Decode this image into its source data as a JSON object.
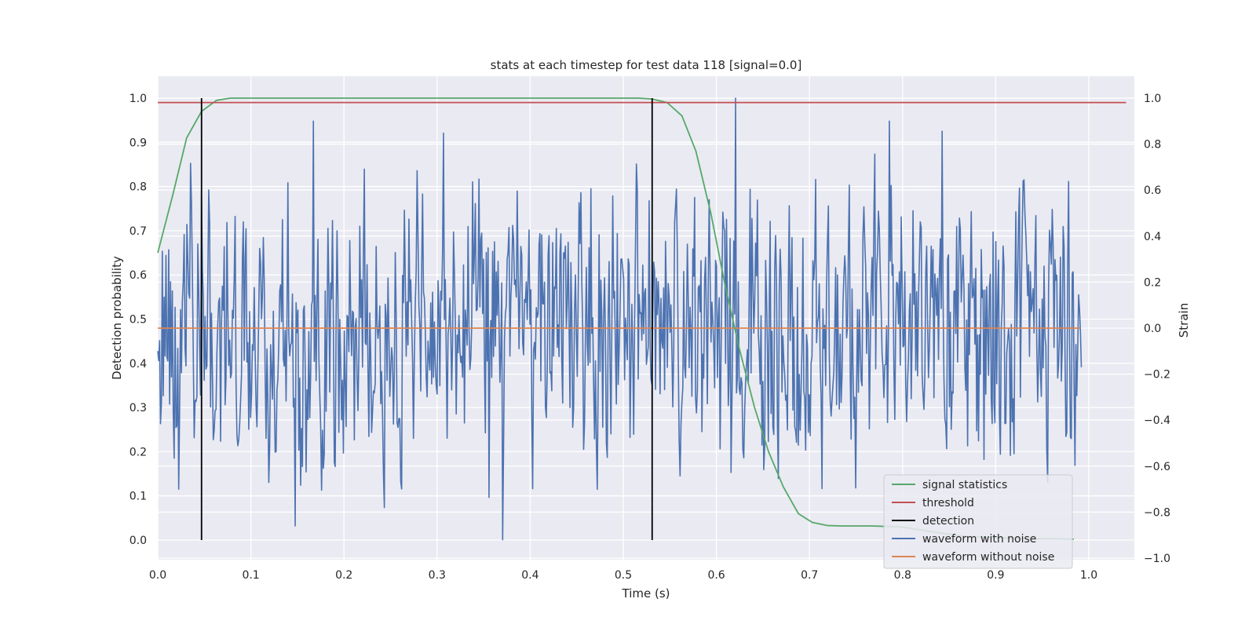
{
  "chart_data": {
    "type": "line",
    "title": "stats at each timestep for test data 118 [signal=0.0]",
    "xlabel": "Time (s)",
    "ylabel_left": "Detection probability",
    "ylabel_right": "Strain",
    "xlim": [
      0.0,
      1.05
    ],
    "ylim_left": [
      -0.05,
      1.05
    ],
    "ylim_right": [
      -1.0,
      1.1
    ],
    "xticks": [
      "0.0",
      "0.1",
      "0.2",
      "0.3",
      "0.4",
      "0.5",
      "0.6",
      "0.7",
      "0.8",
      "0.9",
      "1.0"
    ],
    "yticks_left": [
      "0.0",
      "0.1",
      "0.2",
      "0.3",
      "0.4",
      "0.5",
      "0.6",
      "0.7",
      "0.8",
      "0.9",
      "1.0"
    ],
    "yticks_right": [
      "−1.0",
      "−0.8",
      "−0.6",
      "−0.4",
      "−0.2",
      "0.0",
      "0.2",
      "0.4",
      "0.6",
      "0.8",
      "1.0"
    ],
    "grid": true,
    "legend_position": "lower-right",
    "series": [
      {
        "name": "signal statistics",
        "axis": "left",
        "color": "#55a868",
        "x": [
          0.0,
          0.016,
          0.031,
          0.047,
          0.063,
          0.078,
          0.094,
          0.2,
          0.3,
          0.4,
          0.5,
          0.516,
          0.531,
          0.547,
          0.563,
          0.578,
          0.594,
          0.609,
          0.625,
          0.641,
          0.656,
          0.672,
          0.688,
          0.703,
          0.719,
          0.734,
          0.75,
          0.766,
          0.781,
          0.797,
          0.813,
          0.828,
          0.844,
          0.859,
          0.875,
          0.891,
          0.906,
          0.922,
          0.938,
          0.953,
          0.969,
          0.984
        ],
        "y": [
          0.65,
          0.78,
          0.91,
          0.97,
          0.995,
          1.0,
          1.0,
          1.0,
          1.0,
          1.0,
          1.0,
          1.0,
          0.998,
          0.99,
          0.96,
          0.88,
          0.74,
          0.58,
          0.43,
          0.3,
          0.2,
          0.12,
          0.06,
          0.04,
          0.033,
          0.032,
          0.032,
          0.032,
          0.031,
          0.03,
          0.025,
          0.02,
          0.015,
          0.01,
          0.008,
          0.006,
          0.005,
          0.004,
          0.003,
          0.003,
          0.003,
          0.002
        ]
      },
      {
        "name": "threshold",
        "axis": "left",
        "color": "#c44e52",
        "x": [
          0.0,
          1.04
        ],
        "y": [
          0.99,
          0.99
        ]
      },
      {
        "name": "detection",
        "axis": "left",
        "color": "#000000",
        "x": [
          0.047,
          0.531
        ],
        "y": [
          0.0,
          1.0
        ]
      },
      {
        "name": "waveform with noise",
        "axis": "right",
        "color": "#4c72b0",
        "x_range": [
          0.0,
          0.992
        ],
        "n_points": 1016,
        "y_range": [
          -0.91,
          1.0
        ],
        "representative_x": [
          0.0,
          0.022,
          0.047,
          0.148,
          0.167,
          0.243,
          0.37,
          0.621,
          0.786,
          0.992
        ],
        "representative_y": [
          -0.1,
          -0.7,
          0.6,
          -0.86,
          0.9,
          -0.78,
          -0.92,
          1.0,
          0.9,
          -0.17
        ]
      },
      {
        "name": "waveform without noise",
        "axis": "right",
        "color": "#dd8452",
        "x": [
          0.0,
          0.99
        ],
        "y": [
          0.0,
          0.0
        ]
      }
    ]
  }
}
